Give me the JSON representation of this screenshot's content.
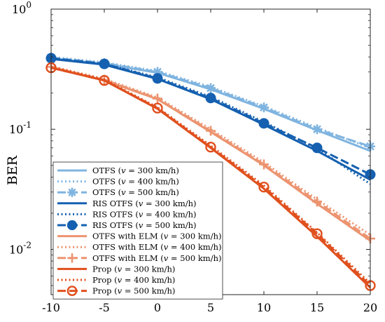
{
  "chart_data": {
    "type": "line",
    "ylabel": "BER",
    "xlabel": "",
    "x_ticks": [
      -10,
      -5,
      0,
      5,
      10,
      15,
      20
    ],
    "x_tick_labels": [
      "-10",
      "-5",
      "0",
      "5",
      "10",
      "15",
      "20"
    ],
    "xlim": [
      -10,
      20
    ],
    "y_scale": "log",
    "ylim": [
      0.0042,
      1
    ],
    "y_ticks": [
      {
        "value": 1,
        "base": "10",
        "exp": "0"
      },
      {
        "value": 0.1,
        "base": "10",
        "exp": "-1"
      },
      {
        "value": 0.01,
        "base": "10",
        "exp": "-2"
      }
    ],
    "grid": false,
    "legend_position": "bottom-left",
    "x": [
      -10,
      -5,
      0,
      5,
      10,
      15,
      20
    ],
    "series": [
      {
        "label_pre": "OTFS (",
        "label_var": "v",
        "label_post": " = 300 km/h)",
        "color": "#7fb4e0",
        "style": "solid",
        "marker": "none",
        "values": [
          0.39,
          0.35,
          0.295,
          0.215,
          0.148,
          0.098,
          0.066
        ]
      },
      {
        "label_pre": "OTFS (",
        "label_var": "v",
        "label_post": " = 400 km/h)",
        "color": "#7fb4e0",
        "style": "dotted",
        "marker": "none",
        "values": [
          0.4,
          0.36,
          0.305,
          0.225,
          0.155,
          0.103,
          0.07
        ]
      },
      {
        "label_pre": "OTFS (",
        "label_var": "v",
        "label_post": " = 500 km/h)",
        "color": "#7fb4e0",
        "style": "dashed",
        "marker": "asterisk",
        "values": [
          0.395,
          0.355,
          0.3,
          0.22,
          0.152,
          0.1,
          0.072
        ]
      },
      {
        "label_pre": "RIS OTFS (",
        "label_var": "v",
        "label_post": " = 300 km/h)",
        "color": "#1560b0",
        "style": "solid",
        "marker": "none",
        "values": [
          0.385,
          0.345,
          0.262,
          0.178,
          0.109,
          0.066,
          0.038
        ]
      },
      {
        "label_pre": "RIS OTFS (",
        "label_var": "v",
        "label_post": " = 400 km/h)",
        "color": "#1560b0",
        "style": "dotted",
        "marker": "none",
        "values": [
          0.39,
          0.35,
          0.27,
          0.186,
          0.115,
          0.069,
          0.035
        ]
      },
      {
        "label_pre": "RIS OTFS (",
        "label_var": "v",
        "label_post": " = 500 km/h)",
        "color": "#1560b0",
        "style": "dashed",
        "marker": "circle-filled",
        "values": [
          0.39,
          0.35,
          0.265,
          0.182,
          0.112,
          0.07,
          0.042
        ]
      },
      {
        "label_pre": "OTFS with ELM (",
        "label_var": "v",
        "label_post": " = 300 km/h)",
        "color": "#ec9470",
        "style": "solid",
        "marker": "none",
        "values": [
          0.33,
          0.255,
          0.178,
          0.095,
          0.05,
          0.024,
          0.0118
        ]
      },
      {
        "label_pre": "OTFS with ELM (",
        "label_var": "v",
        "label_post": " = 400 km/h)",
        "color": "#ec9470",
        "style": "dotted",
        "marker": "none",
        "values": [
          0.335,
          0.262,
          0.184,
          0.1,
          0.053,
          0.026,
          0.0132
        ]
      },
      {
        "label_pre": "OTFS with ELM (",
        "label_var": "v",
        "label_post": " = 500 km/h)",
        "color": "#ec9470",
        "style": "dashed",
        "marker": "plus",
        "values": [
          0.33,
          0.258,
          0.18,
          0.097,
          0.051,
          0.025,
          0.0123
        ]
      },
      {
        "label_pre": "Prop (",
        "label_var": "v",
        "label_post": " = 300 km/h)",
        "color": "#e0501e",
        "style": "solid",
        "marker": "none",
        "values": [
          0.325,
          0.255,
          0.148,
          0.07,
          0.032,
          0.0128,
          0.0048
        ]
      },
      {
        "label_pre": "Prop (",
        "label_var": "v",
        "label_post": " = 400 km/h)",
        "color": "#e0501e",
        "style": "dotted",
        "marker": "none",
        "values": [
          0.33,
          0.26,
          0.152,
          0.073,
          0.034,
          0.0138,
          0.0052
        ]
      },
      {
        "label_pre": "Prop (",
        "label_var": "v",
        "label_post": " = 500 km/h)",
        "color": "#e0501e",
        "style": "dashed",
        "marker": "circle-open",
        "values": [
          0.325,
          0.255,
          0.15,
          0.071,
          0.033,
          0.0135,
          0.005
        ]
      }
    ]
  }
}
